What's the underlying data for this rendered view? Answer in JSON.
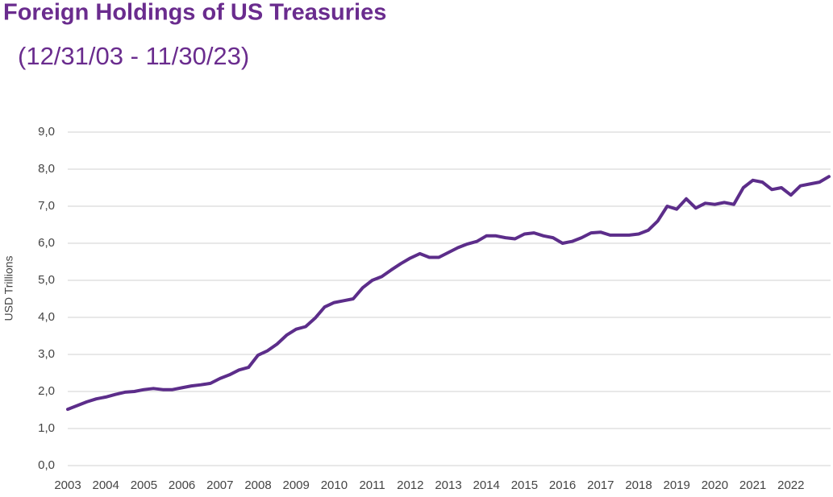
{
  "chart_data": {
    "type": "line",
    "title": "Foreign Holdings of US Treasuries",
    "subtitle": "(12/31/03 - 11/30/23)",
    "y_label": "USD Trillions",
    "categories": [
      "2003",
      null,
      null,
      null,
      "2004",
      null,
      null,
      null,
      "2005",
      null,
      null,
      null,
      "2006",
      null,
      null,
      null,
      "2007",
      null,
      null,
      null,
      "2008",
      null,
      null,
      null,
      "2009",
      null,
      null,
      null,
      "2010",
      null,
      null,
      null,
      "2011",
      null,
      null,
      null,
      "2012",
      null,
      null,
      null,
      "2013",
      null,
      null,
      null,
      "2014",
      null,
      null,
      null,
      "2015",
      null,
      null,
      null,
      "2016",
      null,
      null,
      null,
      "2017",
      null,
      null,
      null,
      "2018",
      null,
      null,
      null,
      "2019",
      null,
      null,
      null,
      "2020",
      null,
      null,
      null,
      "2021",
      null,
      null,
      null,
      "2022",
      null,
      null,
      null,
      null
    ],
    "series": [
      {
        "name": "Foreign Holdings",
        "color": "#5c2d8a",
        "values": [
          1.52,
          1.62,
          1.72,
          1.8,
          1.85,
          1.92,
          1.98,
          2.0,
          2.05,
          2.08,
          2.05,
          2.05,
          2.1,
          2.15,
          2.18,
          2.22,
          2.35,
          2.45,
          2.58,
          2.65,
          2.98,
          3.1,
          3.28,
          3.52,
          3.68,
          3.75,
          3.98,
          4.28,
          4.4,
          4.45,
          4.5,
          4.8,
          5.0,
          5.1,
          5.28,
          5.45,
          5.6,
          5.72,
          5.62,
          5.62,
          5.75,
          5.88,
          5.98,
          6.05,
          6.2,
          6.2,
          6.15,
          6.12,
          6.25,
          6.28,
          6.2,
          6.15,
          6.0,
          6.05,
          6.15,
          6.28,
          6.3,
          6.22,
          6.22,
          6.22,
          6.25,
          6.35,
          6.6,
          7.0,
          6.92,
          7.2,
          6.95,
          7.08,
          7.05,
          7.1,
          7.05,
          7.5,
          7.7,
          7.65,
          7.45,
          7.5,
          7.3,
          7.55,
          7.6,
          7.65,
          7.8
        ]
      }
    ],
    "ylim": [
      0,
      9
    ],
    "yticks": [
      {
        "value": 0,
        "label": "0,0"
      },
      {
        "value": 1,
        "label": "1,0"
      },
      {
        "value": 2,
        "label": "2,0"
      },
      {
        "value": 3,
        "label": "3,0"
      },
      {
        "value": 4,
        "label": "4,0"
      },
      {
        "value": 5,
        "label": "5,0"
      },
      {
        "value": 6,
        "label": "6,0"
      },
      {
        "value": 7,
        "label": "7,0"
      },
      {
        "value": 8,
        "label": "8,0"
      },
      {
        "value": 9,
        "label": "9,0"
      }
    ],
    "grid": true
  }
}
